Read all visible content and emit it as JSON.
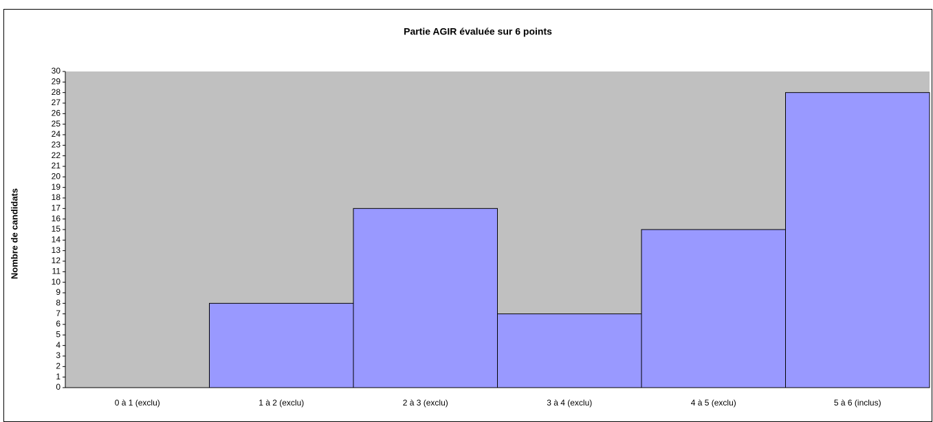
{
  "chart_data": {
    "type": "bar",
    "title": "Partie AGIR évaluée sur 6 points",
    "ylabel": "Nombre de candidats",
    "categories": [
      "0 à 1 (exclu)",
      "1 à 2 (exclu)",
      "2 à 3 (exclu)",
      "3 à 4 (exclu)",
      "4 à 5 (exclu)",
      "5 à 6 (inclus)"
    ],
    "values": [
      0,
      8,
      17,
      7,
      15,
      28
    ],
    "color": "#9999ff",
    "ylim": [
      0,
      30
    ],
    "yticks": [
      0,
      1,
      2,
      3,
      4,
      5,
      6,
      7,
      8,
      9,
      10,
      11,
      12,
      13,
      14,
      15,
      16,
      17,
      18,
      19,
      20,
      21,
      22,
      23,
      24,
      25,
      26,
      27,
      28,
      29,
      30
    ],
    "grid": false
  }
}
